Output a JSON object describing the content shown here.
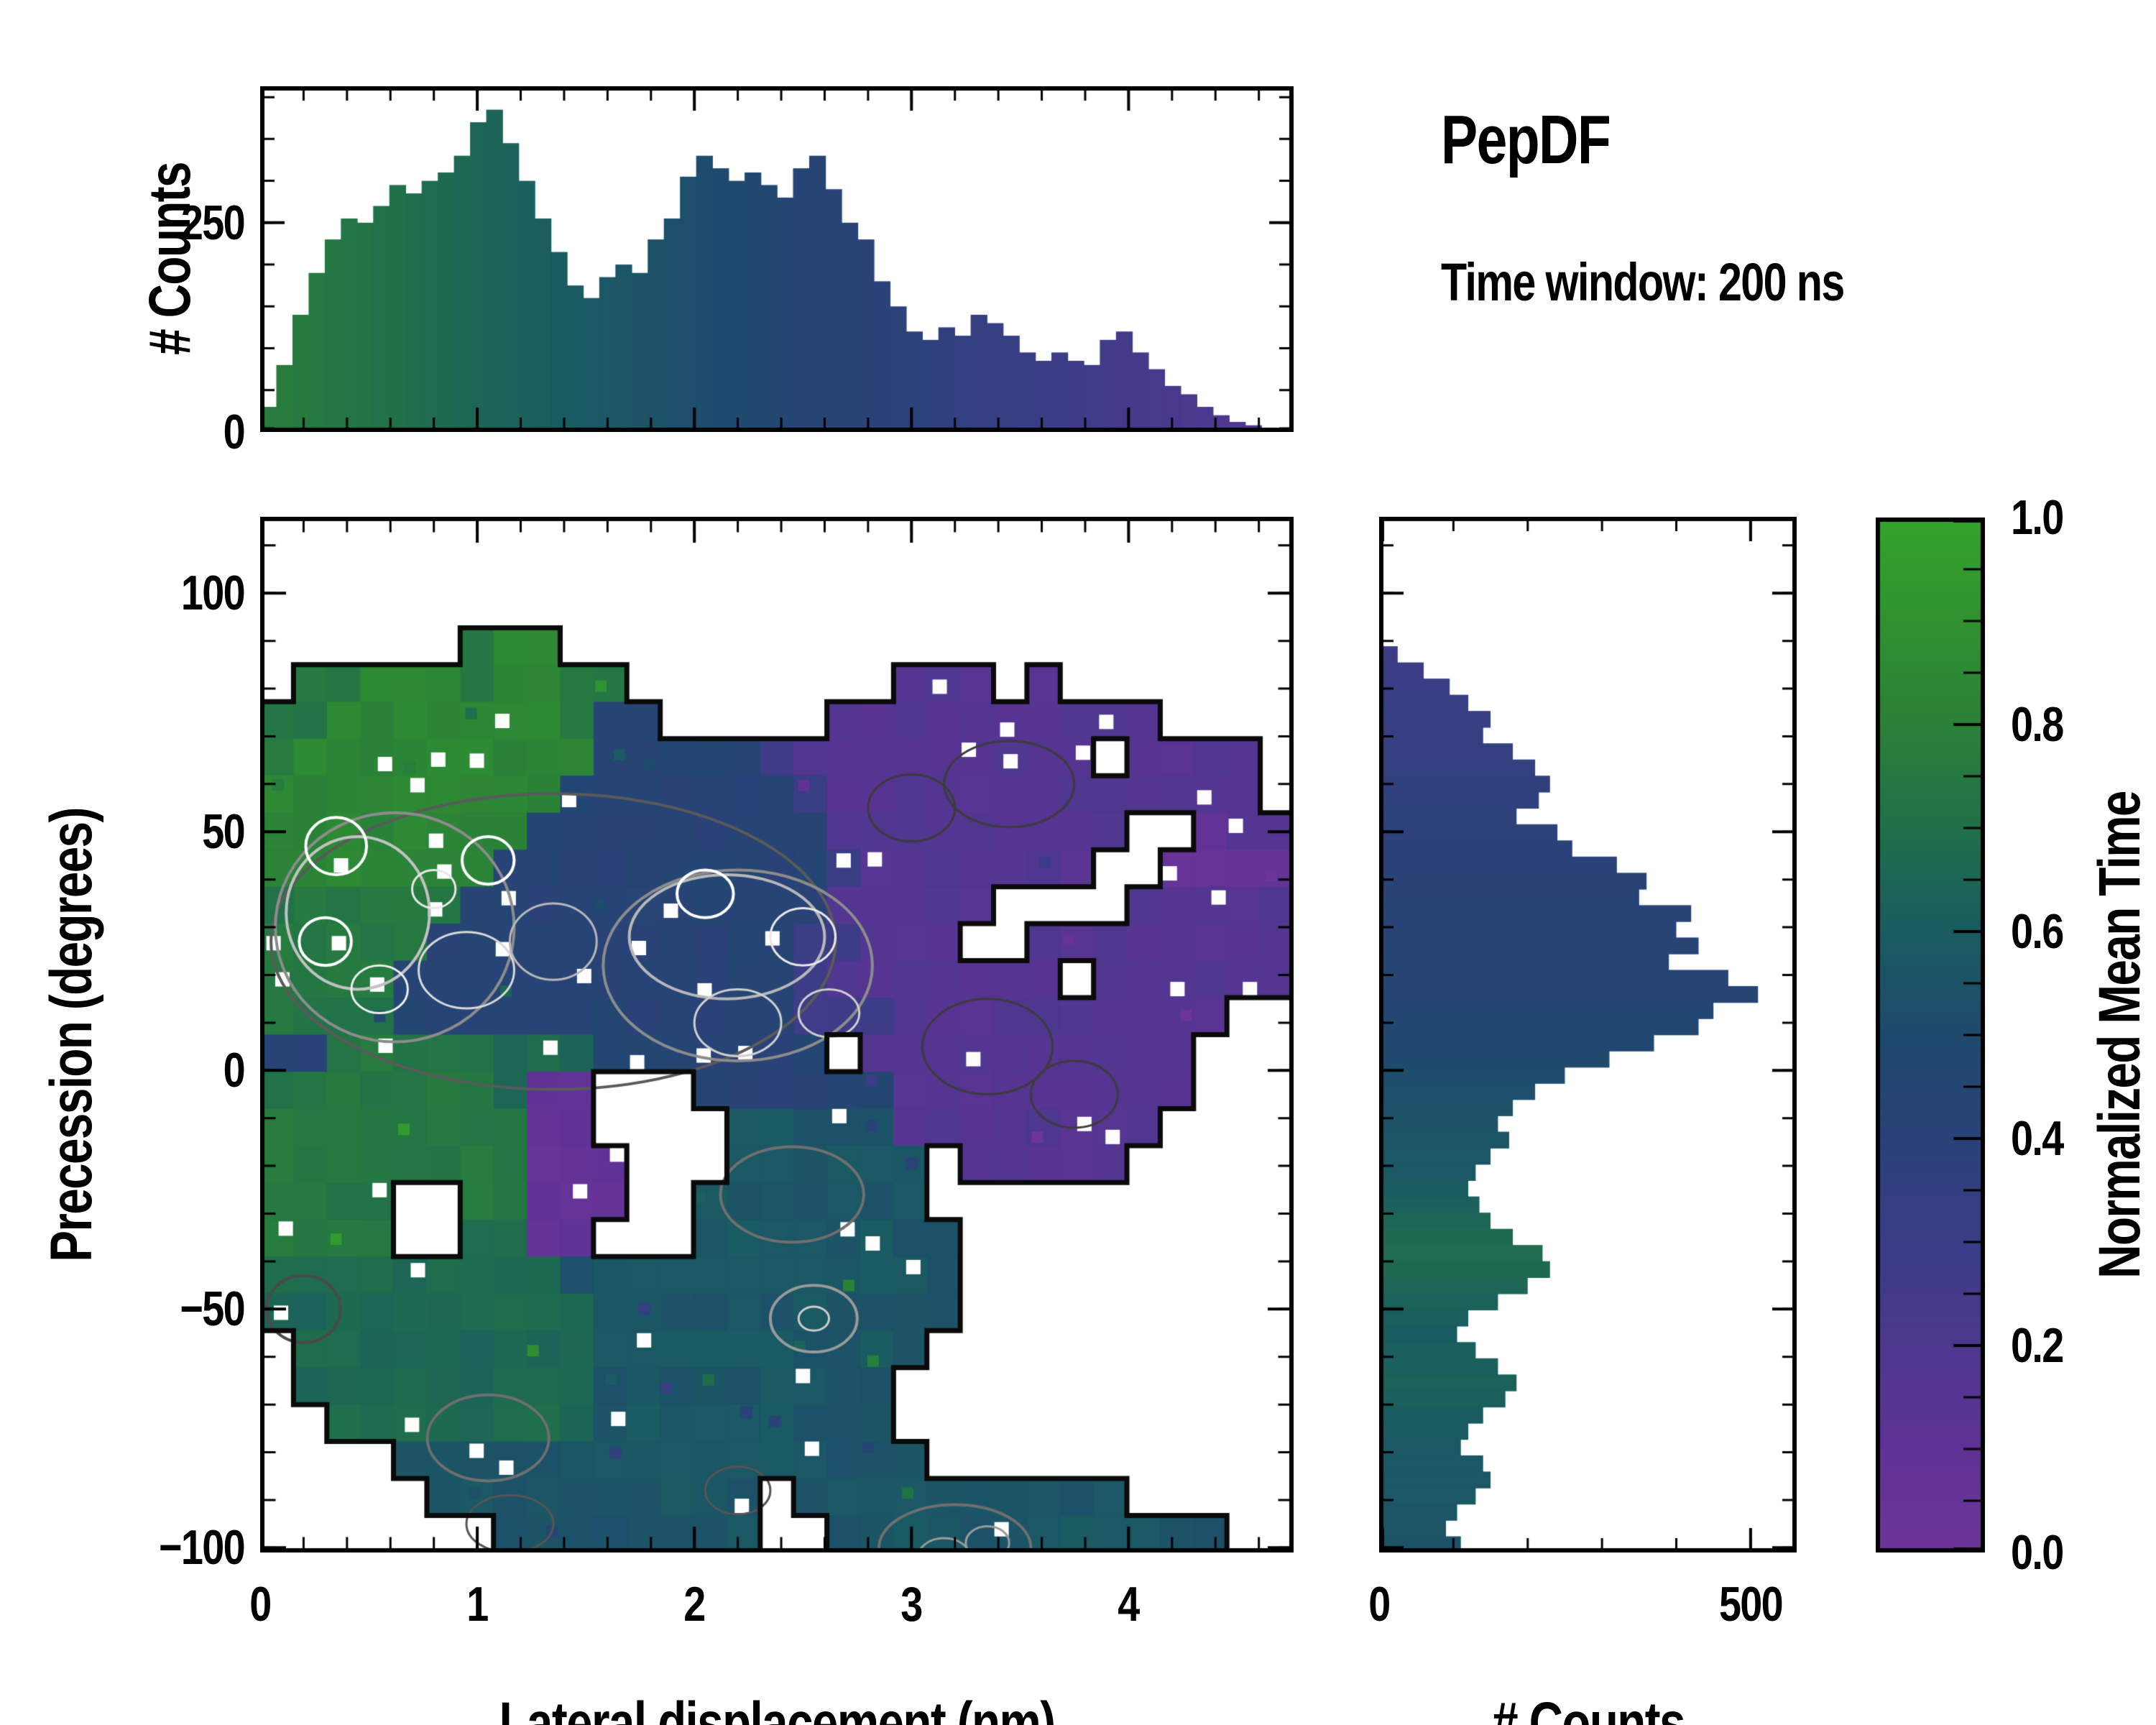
{
  "header": {
    "title": "PepDF",
    "subtitle": "Time window: 200 ns"
  },
  "colors": {
    "background": "#ffffff",
    "frame": "#000000",
    "boundary_contour": "#0a0a0a",
    "colormap_stops": [
      [
        0.0,
        "#6d3598"
      ],
      [
        0.1,
        "#5f3295"
      ],
      [
        0.2,
        "#4c388e"
      ],
      [
        0.3,
        "#3a3d85"
      ],
      [
        0.4,
        "#2a4278"
      ],
      [
        0.5,
        "#1f4a6e"
      ],
      [
        0.6,
        "#195c60"
      ],
      [
        0.7,
        "#20704a"
      ],
      [
        0.8,
        "#2a8138"
      ],
      [
        0.9,
        "#309230"
      ],
      [
        1.0,
        "#35a42b"
      ]
    ]
  },
  "chart_data": {
    "top_histogram": {
      "type": "bar",
      "ylabel": "# Counts",
      "x_range": [
        0,
        4.76
      ],
      "y_range": [
        0,
        413
      ],
      "ytick_labels": [
        {
          "value": 0,
          "label": "0"
        },
        {
          "value": 250,
          "label": "250"
        }
      ],
      "y_minor_step": 50,
      "x_minor_step": 0.2,
      "bin_width": 0.0744,
      "counts": [
        30,
        80,
        140,
        190,
        230,
        255,
        250,
        270,
        295,
        285,
        300,
        310,
        330,
        370,
        385,
        345,
        300,
        255,
        215,
        175,
        160,
        185,
        200,
        190,
        230,
        255,
        305,
        330,
        315,
        300,
        310,
        295,
        280,
        315,
        330,
        290,
        250,
        230,
        180,
        150,
        120,
        110,
        125,
        115,
        140,
        130,
        115,
        95,
        85,
        95,
        85,
        80,
        110,
        120,
        95,
        75,
        55,
        45,
        30,
        20,
        12,
        8,
        5,
        3
      ],
      "color_values": [
        0.77,
        0.77,
        0.76,
        0.75,
        0.74,
        0.73,
        0.72,
        0.71,
        0.7,
        0.69,
        0.68,
        0.67,
        0.66,
        0.65,
        0.64,
        0.63,
        0.62,
        0.61,
        0.6,
        0.59,
        0.58,
        0.57,
        0.56,
        0.55,
        0.54,
        0.53,
        0.52,
        0.51,
        0.5,
        0.49,
        0.48,
        0.47,
        0.46,
        0.45,
        0.44,
        0.43,
        0.42,
        0.41,
        0.4,
        0.39,
        0.38,
        0.37,
        0.36,
        0.35,
        0.34,
        0.33,
        0.32,
        0.31,
        0.3,
        0.29,
        0.28,
        0.27,
        0.26,
        0.25,
        0.24,
        0.23,
        0.22,
        0.21,
        0.2,
        0.19,
        0.18,
        0.17,
        0.16,
        0.15
      ]
    },
    "main_map": {
      "type": "heatmap",
      "xlabel": "Lateral displacement (nm)",
      "ylabel": "Precession (degrees)",
      "x_range": [
        0,
        4.76
      ],
      "y_range": [
        -101,
        116
      ],
      "xtick_labels": [
        {
          "value": 0,
          "label": "0"
        },
        {
          "value": 1,
          "label": "1"
        },
        {
          "value": 2,
          "label": "2"
        },
        {
          "value": 3,
          "label": "3"
        },
        {
          "value": 4,
          "label": "4"
        }
      ],
      "ytick_labels": [
        {
          "value": 100,
          "label": "100"
        },
        {
          "value": 50,
          "label": "50"
        },
        {
          "value": 0,
          "label": "0"
        },
        {
          "value": -50,
          "label": "−50"
        },
        {
          "value": -100,
          "label": "−100"
        }
      ],
      "x_minor_step": 0.2,
      "y_minor_step": 10,
      "value_map": {
        "1": 0.07,
        "2": 0.16,
        "3": 0.3,
        "4": 0.43,
        "5": 0.56,
        "6": 0.66,
        "7": 0.74,
        "8": 0.83,
        "9": 0.92
      },
      "grid_rows": [
        "...............................",
        "...............................",
        "...............................",
        "......788......................",
        ".7788878877........222.2.......",
        "778888888744.....2222222222....",
        "7888888888444443222222222.2222.",
        "888888888444444432222222222222.",
        "88888888444444444222222222..122",
        "8888888444444444432222222..1111",
        "7777774444444444422222....22222",
        "777774444444444433222..22222222",
        "777744444444444432222222.222222",
        "77774444444444443332222222222..",
        "44777776664444444.2222222222...",
        "7777777611...444444222222222...",
        "7777777711....5555522222222....",
        "77777777111...555555.22222.....",
        "7777..77111..5555555...........",
        "7777..6611...55555555..........",
        "666666666555555555555..........",
        "666666666655555555555..........",
        ".6666666665555555555...........",
        ".666666666555555555............",
        "..66666666555555555............",
        "....5555555555555555...........",
        ".....5555555555.5555555555.....",
        ".......55555555..555555555555.."
      ],
      "speckle_seed": 77,
      "speckle_rate": 0.1,
      "contour_rings": [
        {
          "x": 1.35,
          "y": 27,
          "rx": 1.3,
          "ry": 31.0,
          "color": "#5a5a5a",
          "lw": 4
        },
        {
          "x": 0.62,
          "y": 30,
          "rx": 0.55,
          "ry": 24.0,
          "color": "#8c8c8c",
          "lw": 4
        },
        {
          "x": 0.45,
          "y": 33,
          "rx": 0.33,
          "ry": 16.0,
          "color": "#c2c2c2",
          "lw": 4
        },
        {
          "x": 0.35,
          "y": 47,
          "rx": 0.14,
          "ry": 6.0,
          "color": "#ffffff",
          "lw": 4
        },
        {
          "x": 0.3,
          "y": 27,
          "rx": 0.12,
          "ry": 5.0,
          "color": "#ffffff",
          "lw": 4
        },
        {
          "x": 0.55,
          "y": 17,
          "rx": 0.13,
          "ry": 5.0,
          "color": "#f0f0f0",
          "lw": 3
        },
        {
          "x": 0.95,
          "y": 21,
          "rx": 0.22,
          "ry": 8.0,
          "color": "#d9d9d9",
          "lw": 3
        },
        {
          "x": 1.05,
          "y": 44,
          "rx": 0.12,
          "ry": 5.0,
          "color": "#ffffff",
          "lw": 4
        },
        {
          "x": 0.8,
          "y": 38,
          "rx": 0.1,
          "ry": 4.0,
          "color": "#e8e8e8",
          "lw": 3
        },
        {
          "x": 2.2,
          "y": 22,
          "rx": 0.62,
          "ry": 20.0,
          "color": "#8c8c8c",
          "lw": 4
        },
        {
          "x": 2.15,
          "y": 28,
          "rx": 0.45,
          "ry": 13.0,
          "color": "#b8b8b8",
          "lw": 4
        },
        {
          "x": 2.05,
          "y": 37,
          "rx": 0.13,
          "ry": 5.0,
          "color": "#ffffff",
          "lw": 4
        },
        {
          "x": 2.5,
          "y": 28,
          "rx": 0.15,
          "ry": 6.0,
          "color": "#e8e8e8",
          "lw": 3
        },
        {
          "x": 2.2,
          "y": 10,
          "rx": 0.2,
          "ry": 7.0,
          "color": "#cfcfcf",
          "lw": 3
        },
        {
          "x": 2.62,
          "y": 12,
          "rx": 0.14,
          "ry": 5.0,
          "color": "#cfcfcf",
          "lw": 3
        },
        {
          "x": 1.35,
          "y": 27,
          "rx": 0.2,
          "ry": 8.0,
          "color": "#b8b8b8",
          "lw": 3
        },
        {
          "x": 3.0,
          "y": 55,
          "rx": 0.2,
          "ry": 7.0,
          "color": "#3c3c3c",
          "lw": 3
        },
        {
          "x": 3.45,
          "y": 60,
          "rx": 0.3,
          "ry": 9.0,
          "color": "#3c3c3c",
          "lw": 3
        },
        {
          "x": 3.35,
          "y": 5,
          "rx": 0.3,
          "ry": 10.0,
          "color": "#3c3c3c",
          "lw": 3
        },
        {
          "x": 3.75,
          "y": -5,
          "rx": 0.2,
          "ry": 7.0,
          "color": "#3c3c3c",
          "lw": 3
        },
        {
          "x": 0.2,
          "y": -50,
          "rx": 0.17,
          "ry": 7.0,
          "color": "#4a4a4a",
          "lw": 4
        },
        {
          "x": 1.05,
          "y": -77,
          "rx": 0.28,
          "ry": 9.0,
          "color": "#6f6f6f",
          "lw": 4
        },
        {
          "x": 2.45,
          "y": -26,
          "rx": 0.33,
          "ry": 10.0,
          "color": "#6f6f6f",
          "lw": 4
        },
        {
          "x": 2.55,
          "y": -52,
          "rx": 0.2,
          "ry": 7.0,
          "color": "#9a9a9a",
          "lw": 4
        },
        {
          "x": 2.55,
          "y": -52,
          "rx": 0.07,
          "ry": 2.5,
          "color": "#cccccc",
          "lw": 3
        },
        {
          "x": 3.2,
          "y": -100,
          "rx": 0.35,
          "ry": 9.0,
          "color": "#6f6f6f",
          "lw": 4
        },
        {
          "x": 3.15,
          "y": -102,
          "rx": 0.12,
          "ry": 4.0,
          "color": "#9a9a9a",
          "lw": 3
        },
        {
          "x": 3.35,
          "y": -99,
          "rx": 0.1,
          "ry": 3.5,
          "color": "#9a9a9a",
          "lw": 3
        },
        {
          "x": 2.2,
          "y": -88,
          "rx": 0.15,
          "ry": 5.0,
          "color": "#555555",
          "lw": 3
        },
        {
          "x": 1.15,
          "y": -95,
          "rx": 0.2,
          "ry": 6.0,
          "color": "#555555",
          "lw": 3
        }
      ]
    },
    "right_histogram": {
      "type": "bar-horizontal",
      "xlabel": "# Counts",
      "x_range": [
        0,
        562
      ],
      "xtick_labels": [
        {
          "value": 0,
          "label": "0"
        },
        {
          "value": 500,
          "label": "500"
        }
      ],
      "x_minor_step": 100,
      "y_range": [
        -101,
        116
      ],
      "bin_height_deg": 3.39,
      "counts_top_to_bottom": [
        0,
        0,
        0,
        0,
        0,
        0,
        0,
        0,
        25,
        60,
        95,
        120,
        150,
        140,
        180,
        210,
        230,
        215,
        185,
        240,
        260,
        320,
        360,
        350,
        420,
        400,
        430,
        390,
        470,
        510,
        450,
        430,
        370,
        310,
        250,
        210,
        180,
        160,
        175,
        150,
        130,
        120,
        135,
        150,
        180,
        220,
        230,
        200,
        160,
        120,
        105,
        130,
        160,
        185,
        170,
        140,
        120,
        110,
        140,
        150,
        130,
        105,
        90,
        110
      ],
      "color_values": [
        0.3,
        0.3,
        0.3,
        0.3,
        0.3,
        0.3,
        0.3,
        0.3,
        0.28,
        0.29,
        0.3,
        0.31,
        0.32,
        0.33,
        0.34,
        0.35,
        0.36,
        0.37,
        0.38,
        0.39,
        0.4,
        0.4,
        0.41,
        0.41,
        0.42,
        0.42,
        0.43,
        0.44,
        0.44,
        0.45,
        0.46,
        0.47,
        0.48,
        0.5,
        0.51,
        0.53,
        0.54,
        0.55,
        0.56,
        0.57,
        0.58,
        0.6,
        0.62,
        0.65,
        0.67,
        0.68,
        0.67,
        0.65,
        0.63,
        0.61,
        0.6,
        0.61,
        0.62,
        0.63,
        0.62,
        0.6,
        0.59,
        0.58,
        0.58,
        0.57,
        0.57,
        0.56,
        0.56,
        0.55
      ]
    },
    "colorbar": {
      "label": "Normalized Mean Time",
      "range": [
        0,
        1
      ],
      "tick_labels": [
        {
          "value": 0.0,
          "label": "0.0"
        },
        {
          "value": 0.2,
          "label": "0.2"
        },
        {
          "value": 0.4,
          "label": "0.4"
        },
        {
          "value": 0.6,
          "label": "0.6"
        },
        {
          "value": 0.8,
          "label": "0.8"
        },
        {
          "value": 1.0,
          "label": "1.0"
        }
      ],
      "minor_step": 0.05
    }
  }
}
